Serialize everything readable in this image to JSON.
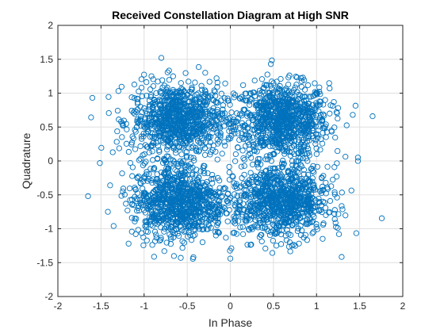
{
  "window": {
    "background": "#ffffff"
  },
  "chart_data": {
    "type": "scatter",
    "title": "Received Constellation Diagram at High SNR",
    "xlabel": "In Phase",
    "ylabel": "Quadrature",
    "xlim": [
      -2,
      2
    ],
    "ylim": [
      -2,
      2
    ],
    "xticks": [
      -2,
      -1.5,
      -1,
      -0.5,
      0,
      0.5,
      1,
      1.5,
      2
    ],
    "yticks": [
      -2,
      -1.5,
      -1,
      -0.5,
      0,
      0.5,
      1,
      1.5,
      2
    ],
    "xtick_labels": [
      "-2",
      "-1.5",
      "-1",
      "-0.5",
      "0",
      "0.5",
      "1",
      "1.5",
      "2"
    ],
    "ytick_labels": [
      "-2",
      "-1.5",
      "-1",
      "-0.5",
      "0",
      "0.5",
      "1",
      "1.5",
      "2"
    ],
    "grid": true,
    "marker": "open-circle",
    "marker_color": "#0072bd",
    "clusters": [
      {
        "center_x": 0.6,
        "center_y": 0.6
      },
      {
        "center_x": -0.6,
        "center_y": 0.6
      },
      {
        "center_x": -0.6,
        "center_y": -0.6
      },
      {
        "center_x": 0.6,
        "center_y": -0.6
      }
    ],
    "outliers": [
      {
        "x": -1.6,
        "y": 0.93
      },
      {
        "x": 1.65,
        "y": 0.66
      },
      {
        "x": -1.65,
        "y": -0.52
      },
      {
        "x": 1.48,
        "y": 0.05
      },
      {
        "x": 1.48,
        "y": 0.0
      },
      {
        "x": -1.42,
        "y": -0.75
      },
      {
        "x": 1.42,
        "y": 0.68
      },
      {
        "x": -0.8,
        "y": 1.52
      },
      {
        "x": 0.47,
        "y": 1.43
      },
      {
        "x": 0.0,
        "y": -1.44
      },
      {
        "x": 1.26,
        "y": -1.08
      },
      {
        "x": -1.18,
        "y": -1.22
      }
    ]
  }
}
